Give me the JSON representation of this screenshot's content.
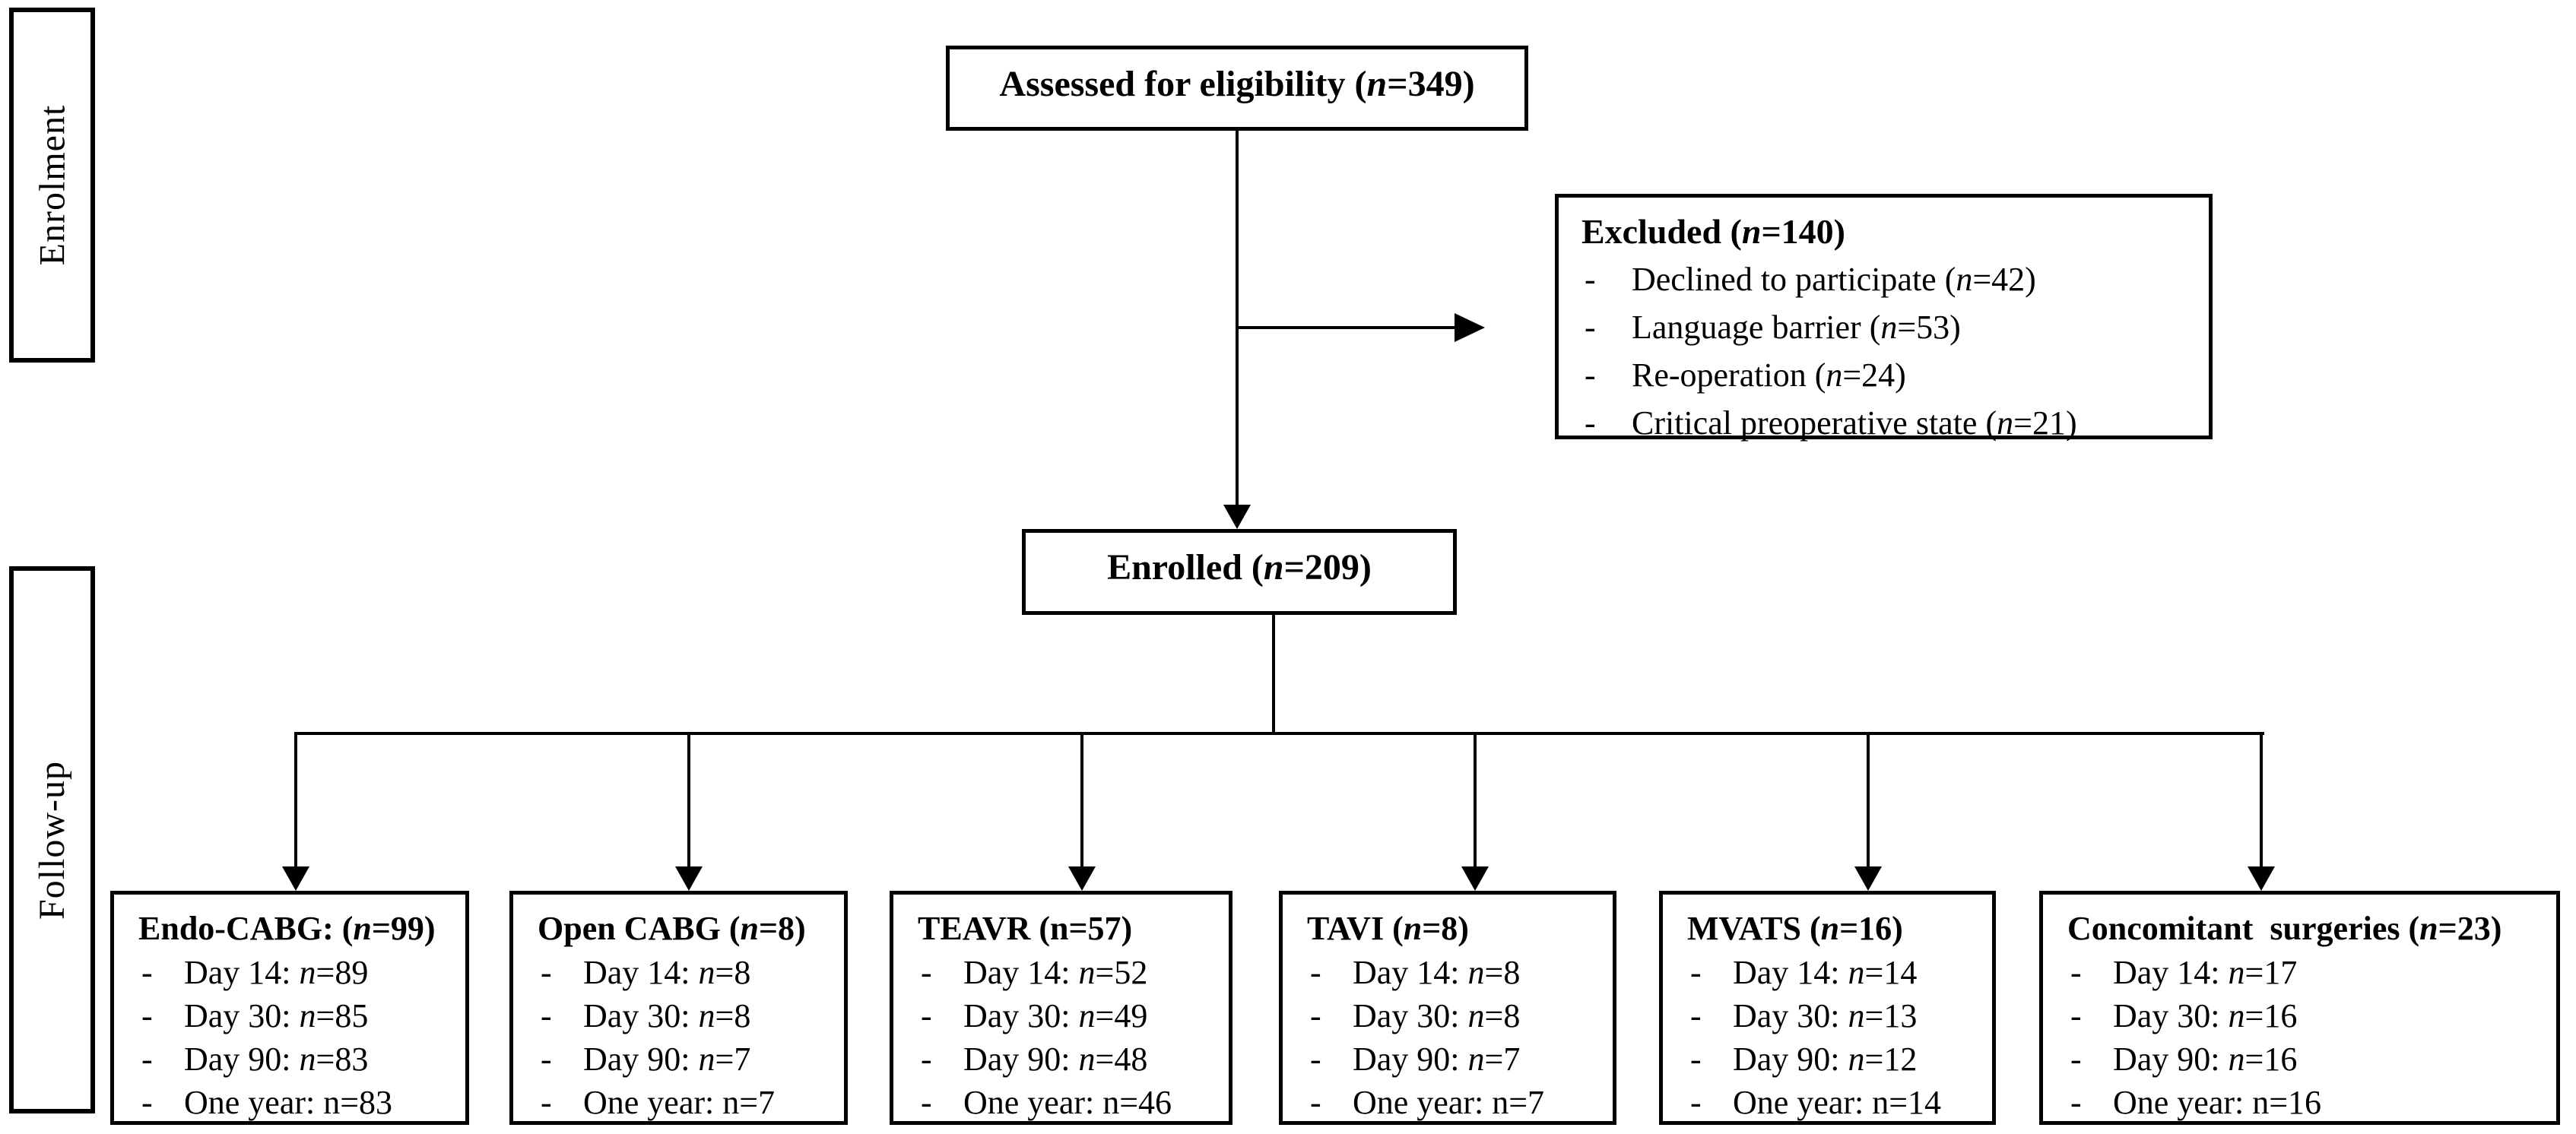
{
  "diagram": {
    "bullet": "-",
    "stage_labels": [
      {
        "label": "Enrolment"
      },
      {
        "label": "Follow-up"
      }
    ],
    "assessed": {
      "text": "Assessed for eligibility (n=349)"
    },
    "excluded": {
      "title": "Excluded (n=140)",
      "items": [
        "Declined to participate (n=42)",
        "Language barrier (n=53)",
        "Re-operation (n=24)",
        "Critical preoperative state (n=21)"
      ]
    },
    "enrolled": {
      "text": "Enrolled (n=209)"
    },
    "groups": [
      {
        "title": "Endo-CABG: (n=99)",
        "items": [
          "Day 14: n=89",
          "Day 30: n=85",
          "Day 90: n=83",
          "One year: n=83"
        ]
      },
      {
        "title": "Open CABG (n=8)",
        "items": [
          "Day 14: n=8",
          "Day 30: n=8",
          "Day 90: n=7",
          "One year: n=7"
        ]
      },
      {
        "title": "TEAVR (n=57)",
        "items": [
          "Day 14: n=52",
          "Day 30: n=49",
          "Day 90: n=48",
          "One year: n=46"
        ]
      },
      {
        "title": "TAVI (n=8)",
        "items": [
          "Day 14: n=8",
          "Day 30: n=8",
          "Day 90: n=7",
          "One year: n=7"
        ]
      },
      {
        "title": "MVATS (n=16)",
        "items": [
          "Day 14: n=14",
          "Day 30: n=13",
          "Day 90: n=12",
          "One year: n=14"
        ]
      },
      {
        "title": "Concomitant  surgeries (n=23)",
        "items": [
          "Day 14: n=17",
          "Day 30: n=16",
          "Day 90: n=16",
          "One year: n=16"
        ]
      }
    ],
    "colors": {
      "line": "#000000",
      "background": "#ffffff"
    }
  }
}
